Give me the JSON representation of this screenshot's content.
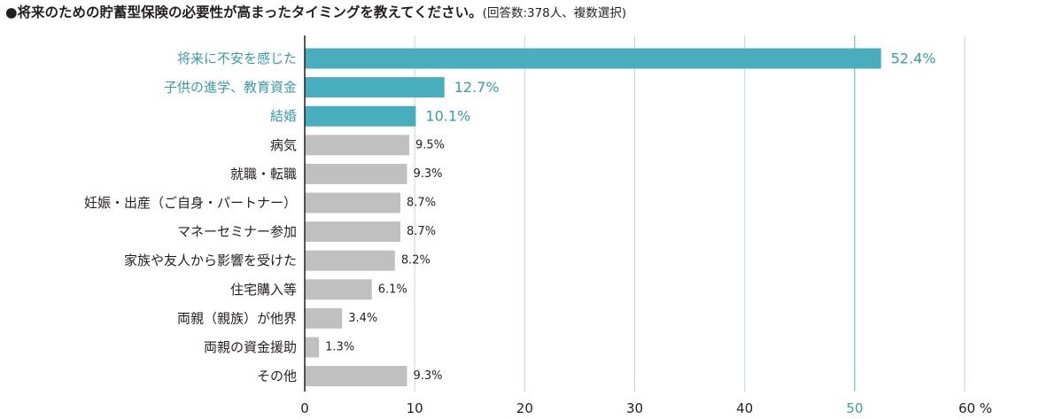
{
  "title": "●将来のための貯蓄型保険の必要性が高まったタイミングを教えてください。",
  "note": "(回答数:378人、複数選択)",
  "colors": {
    "highlight": "#48adbd",
    "highlight_text": "#3a9aab",
    "bar": "#c0c0c1",
    "grid": "#c8d3dc",
    "grid_highlight": "#5ab2c2",
    "text": "#231f20"
  },
  "chart_data": {
    "type": "bar",
    "orientation": "horizontal",
    "categories": [
      "将来に不安を感じた",
      "子供の進学、教育資金",
      "結婚",
      "病気",
      "就職・転職",
      "妊娠・出産（ご自身・パートナー）",
      "マネーセミナー参加",
      "家族や友人から影響を受けた",
      "住宅購入等",
      "両親（親族）が他界",
      "両親の資金援助",
      "その他"
    ],
    "values": [
      52.4,
      12.7,
      10.1,
      9.5,
      9.3,
      8.7,
      8.7,
      8.2,
      6.1,
      3.4,
      1.3,
      9.3
    ],
    "value_labels": [
      "52.4%",
      "12.7%",
      "10.1%",
      "9.5%",
      "9.3%",
      "8.7%",
      "8.7%",
      "8.2%",
      "6.1%",
      "3.4%",
      "1.3%",
      "9.3%"
    ],
    "highlighted": [
      0,
      1,
      2
    ],
    "xlim": [
      0,
      60
    ],
    "xticks": [
      0,
      10,
      20,
      30,
      40,
      50,
      60
    ],
    "xtick_labels": [
      "0",
      "10",
      "20",
      "30",
      "40",
      "50",
      "60 %"
    ],
    "highlighted_tick": 50,
    "grid": true,
    "legend": "none"
  }
}
